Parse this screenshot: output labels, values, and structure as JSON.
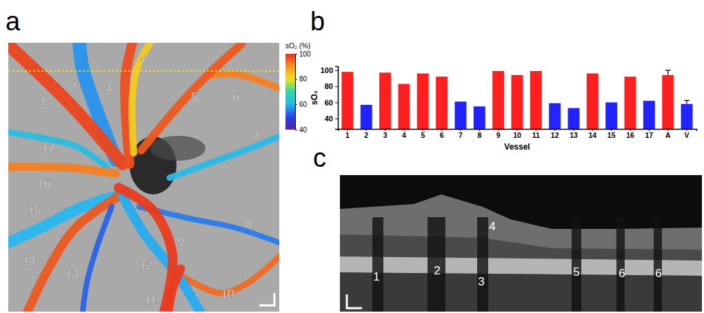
{
  "panel_labels": [
    "a",
    "b",
    "c"
  ],
  "panel_a": {
    "colorbar": {
      "label": "sO₂ (%)",
      "range": [
        40,
        100
      ],
      "ticks": [
        40,
        60,
        80,
        100
      ]
    }
  },
  "chart_data": {
    "type": "bar",
    "xlabel": "Vessel",
    "ylabel": "sO₂",
    "categories": [
      "1",
      "2",
      "3",
      "4",
      "5",
      "6",
      "7",
      "8",
      "9",
      "10",
      "11",
      "12",
      "13",
      "14",
      "15",
      "16",
      "17",
      "A",
      "V"
    ],
    "values": [
      98,
      57,
      97,
      83,
      96,
      92,
      61,
      55,
      99,
      94,
      99,
      59,
      53,
      96,
      60,
      92,
      62,
      94,
      58
    ],
    "errors": [
      null,
      null,
      null,
      null,
      null,
      null,
      null,
      null,
      null,
      null,
      null,
      null,
      null,
      null,
      null,
      null,
      null,
      6,
      4.5
    ],
    "colors": [
      "#ff1f1f",
      "#2323ff",
      "#ff1f1f",
      "#ff1f1f",
      "#ff1f1f",
      "#ff1f1f",
      "#2323ff",
      "#2323ff",
      "#ff1f1f",
      "#ff1f1f",
      "#ff1f1f",
      "#2323ff",
      "#2323ff",
      "#ff1f1f",
      "#2323ff",
      "#ff1f1f",
      "#2323ff",
      "#ff1f1f",
      "#2323ff"
    ],
    "ylim": [
      27,
      105
    ],
    "yticks": [
      40,
      60,
      80,
      100
    ]
  },
  "panel_c": {
    "vessel_labels": [
      "1",
      "2",
      "4",
      "3",
      "5",
      "6",
      "6"
    ]
  }
}
